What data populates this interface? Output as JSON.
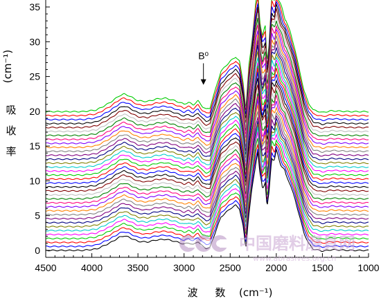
{
  "chart_data": {
    "type": "line",
    "title": "",
    "xlabel": "波 数 (cm⁻¹)",
    "xlabel_chars": [
      "波",
      "数"
    ],
    "xlabel_unit": "(cm⁻¹)",
    "ylabel_unit": "(cm⁻¹)",
    "ylabel_chars": [
      "吸",
      "收",
      "率"
    ],
    "xlim": [
      4500,
      1000
    ],
    "ylim": [
      -1,
      36
    ],
    "x_reversed": true,
    "x_ticks": [
      4500,
      4000,
      3500,
      3000,
      2500,
      2000,
      1500,
      1000
    ],
    "y_ticks": [
      0,
      5,
      10,
      15,
      20,
      25,
      30,
      35
    ],
    "grid": false,
    "legend": "none",
    "series_count": 36,
    "offset_start": 0,
    "offset_step": 0.57,
    "colors": [
      "#000000",
      "#0000ff",
      "#ff0000",
      "#00cc00",
      "#ff00ff",
      "#00cccc",
      "#808000",
      "#000080",
      "#800080",
      "#808080",
      "#ff8000",
      "#8000ff",
      "#ff0080",
      "#008000",
      "#c0c0c0",
      "#800000"
    ],
    "profile": {
      "x": [
        4500,
        4300,
        4100,
        3950,
        3880,
        3800,
        3700,
        3650,
        3600,
        3500,
        3400,
        3300,
        3200,
        3100,
        3000,
        2950,
        2900,
        2850,
        2800,
        2760,
        2720,
        2700,
        2650,
        2600,
        2500,
        2440,
        2400,
        2360,
        2330,
        2300,
        2260,
        2220,
        2200,
        2180,
        2150,
        2120,
        2100,
        2080,
        2050,
        2020,
        2000,
        1980,
        1950,
        1900,
        1850,
        1800,
        1750,
        1700,
        1650,
        1600,
        1500,
        1400,
        1200,
        1000
      ],
      "y": [
        0,
        0,
        0,
        0.2,
        0.6,
        1.1,
        1.9,
        2.1,
        1.9,
        1.3,
        1.2,
        1.5,
        1.6,
        1.3,
        0.9,
        1.1,
        0.8,
        1.3,
        0.6,
        0.3,
        0.4,
        1.2,
        3.0,
        4.8,
        6.0,
        6.5,
        6.0,
        3.5,
        0.3,
        5.0,
        9.0,
        13.0,
        14.2,
        11.0,
        9.0,
        10.0,
        6.0,
        8.0,
        13.5,
        13.0,
        14.2,
        13.5,
        12.5,
        11.0,
        9.5,
        7.5,
        5.0,
        2.5,
        1.0,
        0.2,
        -0.1,
        0.1,
        0,
        0
      ]
    },
    "annotations": [
      {
        "text": "B⁰",
        "x": 2790,
        "y": 27.5,
        "arrow_to": [
          2790,
          23.8
        ]
      }
    ]
  },
  "watermark": {
    "text": "中国磨料磨具网",
    "url": "www.abrasives.org.cn",
    "logo": "ccc-logo"
  }
}
